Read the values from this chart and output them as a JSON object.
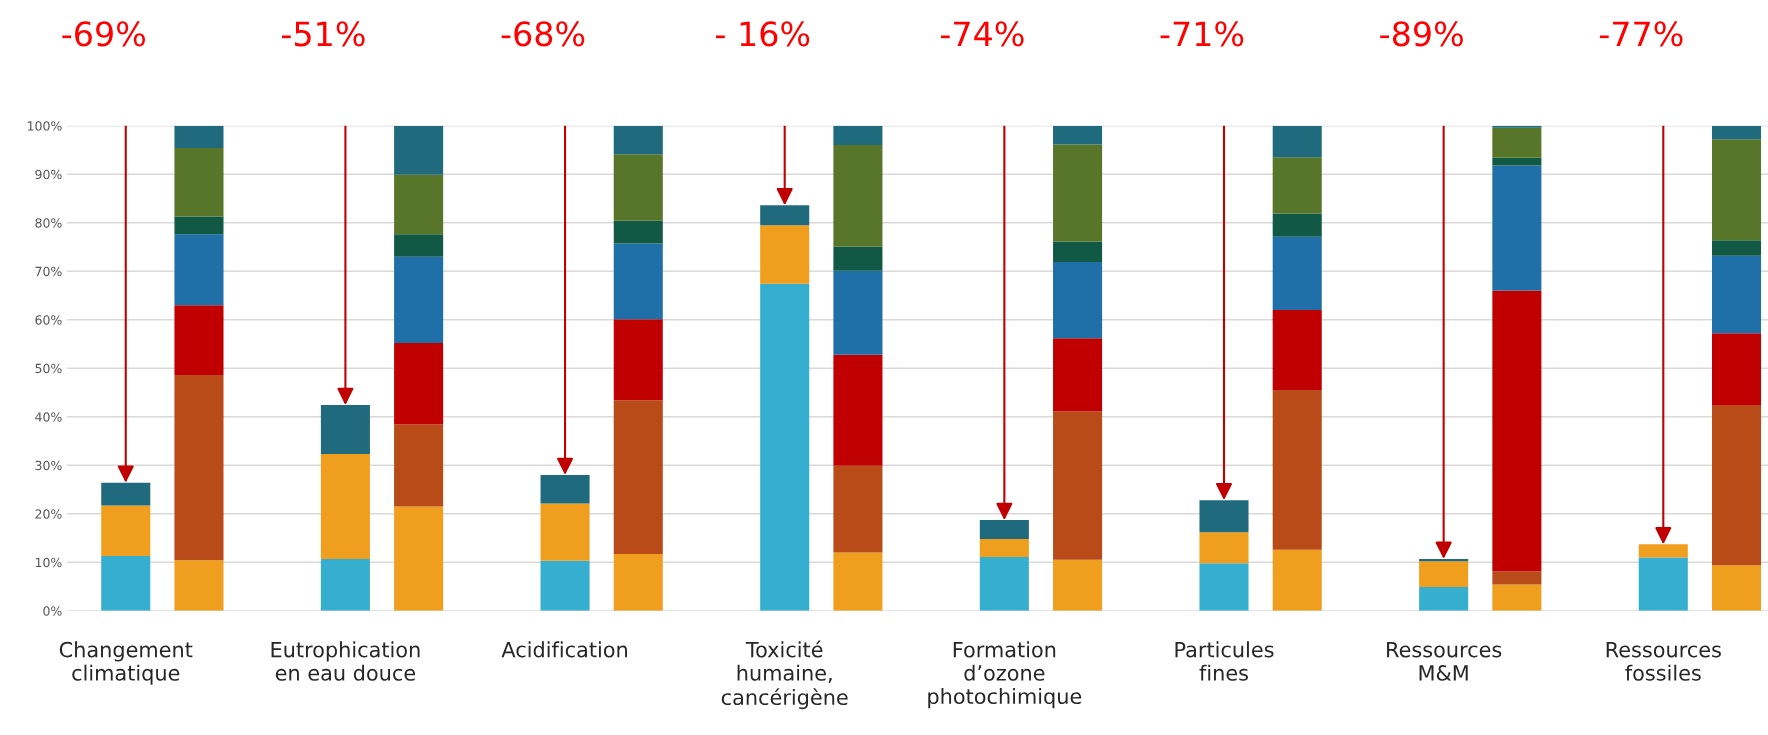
{
  "chart_data": {
    "type": "bar",
    "stacked": true,
    "categories": [
      "Changement\nclimatique",
      null,
      null,
      "Eutrophication\nen eau douce",
      null,
      null,
      "Acidification",
      null,
      null,
      "Toxicité\nhumaine,\ncancérigène",
      null,
      null,
      "Formation\nd’ozone\nphotochimique",
      null,
      null,
      "Particules\nfines",
      null,
      null,
      "Ressources\nM&M",
      null,
      null,
      "Ressources\nfossiles",
      null
    ],
    "series": [
      {
        "color": "#35aecf",
        "values": [
          11.3,
          null,
          null,
          10.7,
          null,
          null,
          10.3,
          null,
          null,
          67.4,
          null,
          null,
          11.1,
          null,
          null,
          9.8,
          null,
          null,
          4.9,
          null,
          null,
          11.0,
          null
        ]
      },
      {
        "color": "#f09e1e",
        "values": [
          10.4,
          10.4,
          null,
          21.6,
          21.5,
          null,
          11.8,
          11.7,
          null,
          12.1,
          12.0,
          null,
          3.7,
          10.5,
          null,
          6.4,
          12.6,
          null,
          5.3,
          5.4,
          null,
          2.7,
          9.4
        ]
      },
      {
        "color": "#b84b18",
        "values": [
          null,
          38.2,
          null,
          null,
          16.9,
          null,
          null,
          31.7,
          null,
          null,
          17.9,
          null,
          null,
          30.6,
          null,
          null,
          32.9,
          null,
          null,
          2.7,
          null,
          null,
          33.0
        ]
      },
      {
        "color": "#c00000",
        "values": [
          null,
          14.4,
          null,
          null,
          16.8,
          null,
          null,
          16.7,
          null,
          null,
          22.9,
          null,
          null,
          15.1,
          null,
          null,
          16.5,
          null,
          null,
          57.9,
          null,
          null,
          14.8
        ]
      },
      {
        "color": "#1f6fa8",
        "values": [
          null,
          14.6,
          null,
          null,
          17.8,
          null,
          null,
          15.6,
          null,
          null,
          17.3,
          null,
          null,
          15.7,
          null,
          null,
          15.1,
          null,
          null,
          25.8,
          null,
          null,
          16.0
        ]
      },
      {
        "color": "#125945",
        "values": [
          null,
          3.7,
          null,
          null,
          4.6,
          null,
          null,
          4.7,
          null,
          null,
          5.0,
          null,
          null,
          4.2,
          null,
          null,
          4.8,
          null,
          null,
          1.6,
          null,
          null,
          3.2
        ]
      },
      {
        "color": "#577629",
        "values": [
          null,
          14.1,
          null,
          null,
          12.3,
          null,
          null,
          13.7,
          null,
          null,
          20.9,
          null,
          null,
          20.0,
          null,
          null,
          11.6,
          null,
          null,
          6.2,
          null,
          null,
          20.8
        ]
      },
      {
        "color": "#206a7e",
        "values": [
          4.7,
          4.6,
          null,
          10.1,
          10.1,
          null,
          5.9,
          5.9,
          null,
          4.1,
          4.0,
          null,
          3.9,
          3.9,
          null,
          6.6,
          6.5,
          null,
          0.5,
          0.4,
          null,
          null,
          2.8
        ]
      }
    ],
    "ylim": [
      0,
      100
    ],
    "yticks": [
      {
        "value": 0,
        "label": "0%"
      },
      {
        "value": 10,
        "label": "10%"
      },
      {
        "value": 20,
        "label": "20%"
      },
      {
        "value": 30,
        "label": "30%"
      },
      {
        "value": 40,
        "label": "40%"
      },
      {
        "value": 50,
        "label": "50%"
      },
      {
        "value": 60,
        "label": "60%"
      },
      {
        "value": 70,
        "label": "70%"
      },
      {
        "value": 80,
        "label": "80%"
      },
      {
        "value": 90,
        "label": "90%"
      },
      {
        "value": 100,
        "label": "100%"
      }
    ],
    "grid": "y",
    "legend": false,
    "annotations": [
      "-69%",
      "-51%",
      "-68%",
      "- 16%",
      "-74%",
      "-71%",
      "-89%",
      "-77%"
    ]
  }
}
